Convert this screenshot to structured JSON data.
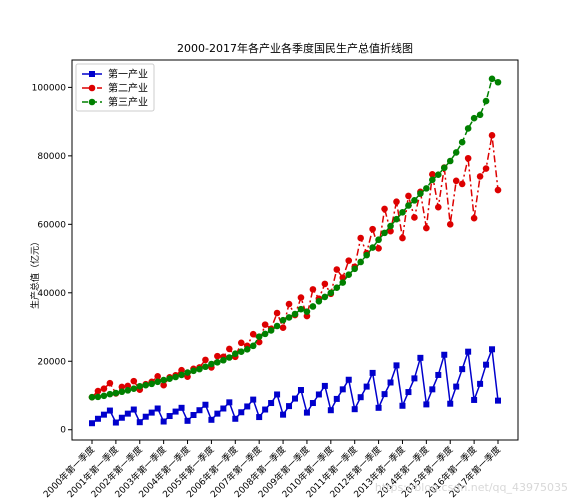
{
  "chart_data": {
    "type": "line",
    "title": "2000-2017年各产业各季度国民生产总值折线图",
    "ylabel": "生产总值（亿元）",
    "xlabel": "",
    "ylim": [
      -3000,
      108000
    ],
    "yticks": [
      0,
      20000,
      40000,
      60000,
      80000,
      100000
    ],
    "grid": false,
    "legend_position": "top-left",
    "x_tick_labels": [
      "2000年第一季度",
      "2001年第一季度",
      "2002年第一季度",
      "2003年第一季度",
      "2004年第一季度",
      "2005年第一季度",
      "2006年第一季度",
      "2007年第一季度",
      "2008年第一季度",
      "2009年第一季度",
      "2010年第一季度",
      "2011年第一季度",
      "2012年第一季度",
      "2013年第一季度",
      "2014年第一季度",
      "2015年第一季度",
      "2016年第一季度",
      "2017年第一季度"
    ],
    "series": [
      {
        "name": "第一产业",
        "color": "#0000cc",
        "marker": "square",
        "line_style": "solid",
        "values": [
          1900,
          3200,
          4400,
          5600,
          2100,
          3500,
          4700,
          5900,
          2200,
          3800,
          5000,
          6200,
          2400,
          4000,
          5300,
          6400,
          2600,
          4300,
          5700,
          7300,
          2900,
          4700,
          6200,
          8000,
          3200,
          5100,
          6800,
          8800,
          3700,
          5900,
          7800,
          10300,
          4400,
          6900,
          9100,
          11600,
          5000,
          7800,
          10300,
          12800,
          5700,
          9000,
          11800,
          14600,
          6000,
          9500,
          12600,
          16600,
          6400,
          10400,
          13800,
          18800,
          7000,
          11000,
          15000,
          21000,
          7400,
          11800,
          16000,
          21900,
          7600,
          12600,
          17700,
          22800,
          8700,
          13400,
          19000,
          23500,
          8500
        ]
      },
      {
        "name": "第二产业",
        "color": "#dd0000",
        "marker": "circle",
        "line_style": "dashdot",
        "values": [
          9500,
          11300,
          12000,
          13600,
          10600,
          12500,
          12800,
          14200,
          11700,
          13300,
          14000,
          15600,
          13000,
          15300,
          15900,
          17400,
          15500,
          17800,
          18200,
          20400,
          18200,
          21500,
          21300,
          23600,
          21300,
          25400,
          24500,
          27900,
          25600,
          30700,
          29500,
          34100,
          29800,
          36700,
          33500,
          38600,
          33200,
          41000,
          38300,
          42600,
          39700,
          46800,
          44400,
          49400,
          47600,
          56000,
          51600,
          58600,
          53000,
          64500,
          58000,
          66600,
          56000,
          68300,
          62000,
          69500,
          58900,
          74600,
          65000,
          76600,
          60000,
          72700,
          71800,
          79300,
          61800,
          74000,
          76300,
          86000,
          70000
        ]
      },
      {
        "name": "第三产业",
        "color": "#008000",
        "marker": "circle",
        "line_style": "dashed",
        "values": [
          9500,
          9600,
          9900,
          10400,
          10700,
          11100,
          11500,
          12000,
          12700,
          13000,
          13400,
          14000,
          14500,
          14900,
          15400,
          16000,
          16700,
          17200,
          17700,
          18400,
          19200,
          19700,
          20300,
          21100,
          22200,
          22800,
          23500,
          24500,
          27200,
          28000,
          29000,
          30300,
          32000,
          32800,
          33800,
          35200,
          34500,
          36000,
          37500,
          38800,
          40000,
          41500,
          43000,
          45300,
          47000,
          49000,
          51000,
          53200,
          55500,
          57500,
          59500,
          61500,
          63500,
          65500,
          67000,
          69000,
          70500,
          73000,
          74500,
          76500,
          78500,
          81000,
          84000,
          88000,
          91000,
          92000,
          96000,
          102500,
          101500
        ]
      }
    ]
  },
  "watermark": "https://blog.csdn.net/qq_43975035"
}
